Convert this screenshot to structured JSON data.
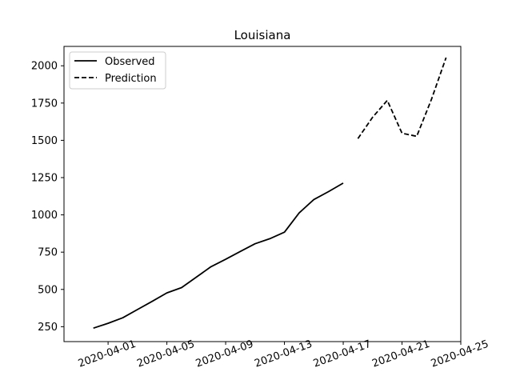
{
  "chart_data": {
    "type": "line",
    "title": "Louisiana",
    "xlabel": "",
    "ylabel": "",
    "x_axis_type": "date",
    "xlim": [
      "2020-03-29",
      "2020-04-25"
    ],
    "ylim": [
      150,
      2130
    ],
    "x_ticks": [
      "2020-04-01",
      "2020-04-05",
      "2020-04-09",
      "2020-04-13",
      "2020-04-17",
      "2020-04-21",
      "2020-04-25"
    ],
    "y_ticks": [
      250,
      500,
      750,
      1000,
      1250,
      1500,
      1750,
      2000
    ],
    "grid": false,
    "legend_placement": "upper-left",
    "series": [
      {
        "name": "Observed",
        "style": "solid",
        "color": "#000000",
        "points": [
          {
            "x": "2020-03-31",
            "y": 240
          },
          {
            "x": "2020-04-01",
            "y": 273
          },
          {
            "x": "2020-04-02",
            "y": 310
          },
          {
            "x": "2020-04-03",
            "y": 365
          },
          {
            "x": "2020-04-04",
            "y": 420
          },
          {
            "x": "2020-04-05",
            "y": 477
          },
          {
            "x": "2020-04-06",
            "y": 512
          },
          {
            "x": "2020-04-07",
            "y": 582
          },
          {
            "x": "2020-04-08",
            "y": 652
          },
          {
            "x": "2020-04-09",
            "y": 702
          },
          {
            "x": "2020-04-10",
            "y": 755
          },
          {
            "x": "2020-04-11",
            "y": 806
          },
          {
            "x": "2020-04-12",
            "y": 840
          },
          {
            "x": "2020-04-13",
            "y": 884
          },
          {
            "x": "2020-04-14",
            "y": 1013
          },
          {
            "x": "2020-04-15",
            "y": 1103
          },
          {
            "x": "2020-04-16",
            "y": 1156
          },
          {
            "x": "2020-04-17",
            "y": 1213
          }
        ]
      },
      {
        "name": "Prediction",
        "style": "dashed",
        "color": "#000000",
        "points": [
          {
            "x": "2020-04-18",
            "y": 1512
          },
          {
            "x": "2020-04-19",
            "y": 1655
          },
          {
            "x": "2020-04-20",
            "y": 1768
          },
          {
            "x": "2020-04-21",
            "y": 1548
          },
          {
            "x": "2020-04-22",
            "y": 1527
          },
          {
            "x": "2020-04-23",
            "y": 1775
          },
          {
            "x": "2020-04-24",
            "y": 2055
          }
        ]
      }
    ]
  }
}
